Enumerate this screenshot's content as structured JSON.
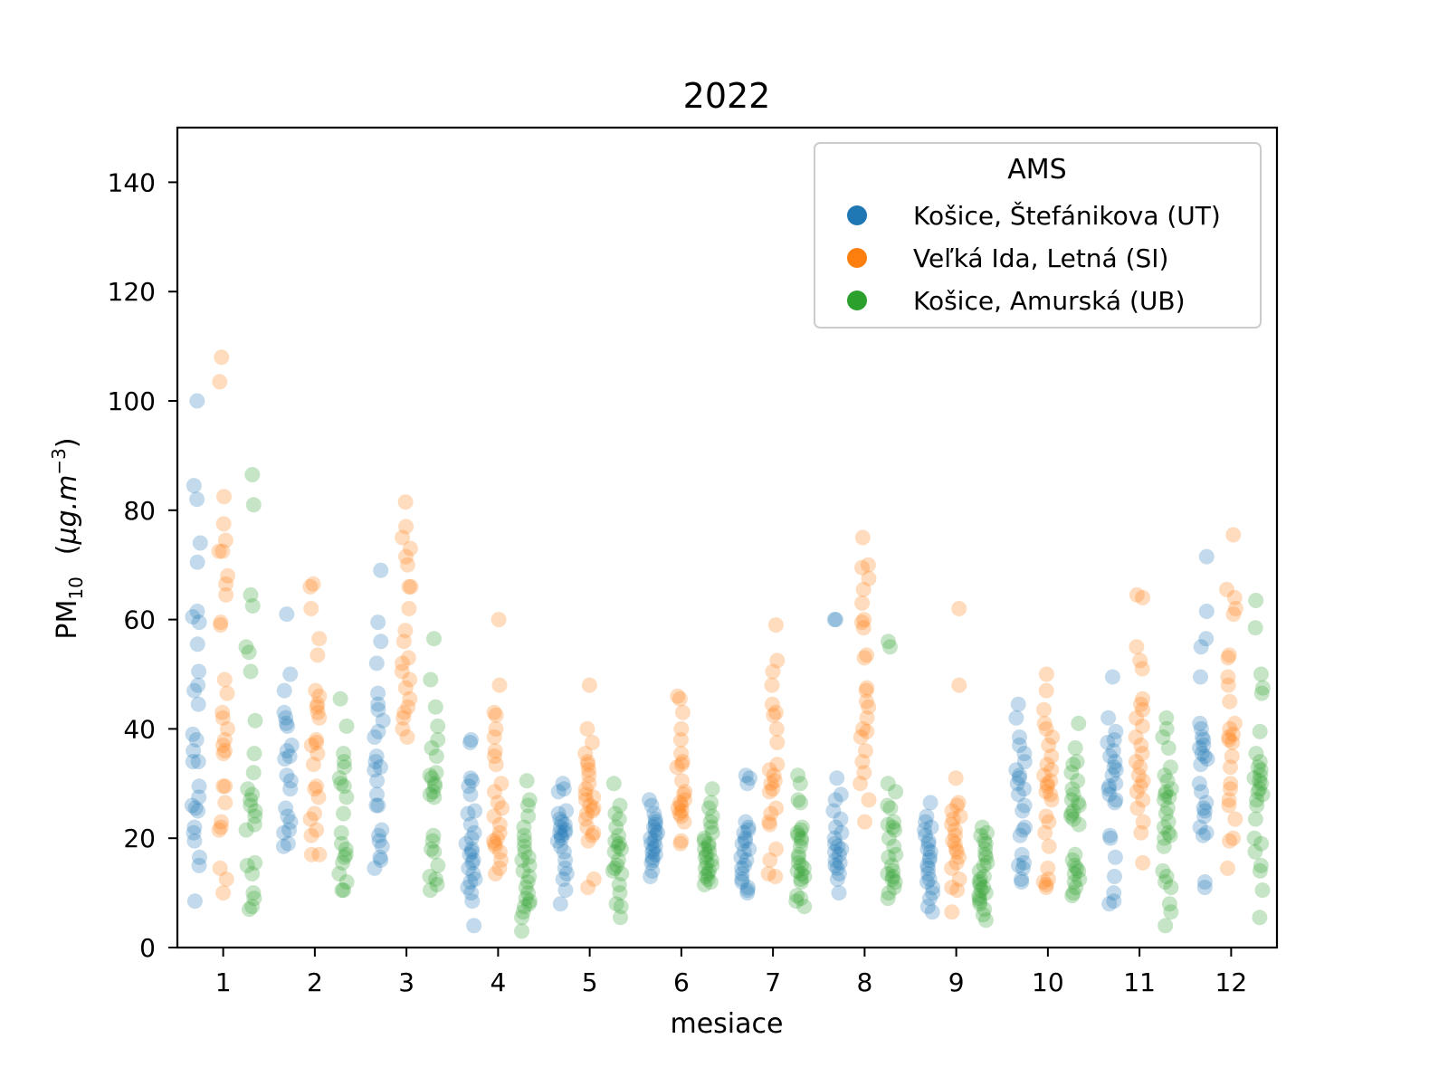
{
  "chart_data": {
    "type": "scatter",
    "title": "2022",
    "xlabel": "mesiace",
    "ylabel": "PM10 (µg.m−3)",
    "ylabel_parts": {
      "pm": "PM",
      "sub": "10",
      "unit_open": "(",
      "unit_mu": "µg.m",
      "unit_exp": "−3",
      "unit_close": ")"
    },
    "xlim": [
      0.5,
      12.5
    ],
    "ylim": [
      0,
      150
    ],
    "xticks": [
      1,
      2,
      3,
      4,
      5,
      6,
      7,
      8,
      9,
      10,
      11,
      12
    ],
    "yticks": [
      0,
      20,
      40,
      60,
      80,
      100,
      120,
      140
    ],
    "grid": false,
    "legend": {
      "title": "AMS",
      "placement": "top-right"
    },
    "series": [
      {
        "name": "Košice, Štefánikova (UT)",
        "color": "#1f77b4",
        "offset": -0.3,
        "values": {
          "1": [
            100,
            84.5,
            82,
            74,
            70.5,
            61.5,
            60.5,
            59.5,
            55.5,
            50.5,
            48,
            47,
            44.5,
            39,
            38,
            36,
            34,
            34,
            29.5,
            27.5,
            26,
            25.5,
            25,
            22,
            21,
            19.5,
            16.5,
            15,
            8.5
          ],
          "2": [
            61,
            50,
            47,
            43,
            42,
            41,
            40.5,
            37,
            36,
            35,
            34.5,
            31.5,
            30.5,
            29,
            25.5,
            24,
            23,
            21.5,
            21,
            19,
            18.5
          ],
          "3": [
            69,
            59.5,
            56,
            52,
            46.5,
            44.5,
            43.5,
            41.5,
            39.5,
            38.5,
            35,
            34,
            33,
            32.5,
            30.5,
            28,
            26,
            26,
            21.5,
            20.5,
            19.5,
            18.5,
            16.5,
            16,
            14.5
          ],
          "4": [
            38,
            37.5,
            31,
            30.5,
            29.5,
            28,
            25,
            24.5,
            22.5,
            21,
            20,
            19,
            18,
            17.5,
            17,
            16,
            15.5,
            14.5,
            13.5,
            12.5,
            12,
            11,
            10,
            8.5,
            4
          ],
          "5": [
            30,
            29,
            28.5,
            25,
            24.5,
            23.5,
            23,
            22.5,
            22,
            21.5,
            21,
            21,
            20.5,
            20,
            19.5,
            18.5,
            17.5,
            16,
            14.5,
            13.5,
            12.5,
            10.5,
            8
          ],
          "6": [
            27,
            26,
            24.5,
            23.5,
            23,
            22.5,
            22,
            21.5,
            21,
            20.5,
            20,
            19.5,
            19,
            18.5,
            18,
            17.5,
            17,
            16.5,
            16,
            15.5,
            14,
            13
          ],
          "7": [
            31.5,
            31,
            30,
            23,
            22,
            21.5,
            21,
            20,
            19.5,
            19,
            18,
            17.5,
            16.5,
            16,
            15,
            14.5,
            13.5,
            12.5,
            12,
            11,
            10.5,
            10
          ],
          "8": [
            60,
            60,
            31,
            28,
            27,
            25,
            23.5,
            22,
            21,
            20,
            19,
            18.5,
            18,
            17.5,
            17,
            16,
            15.5,
            15,
            14.5,
            13.5,
            12.5,
            10
          ],
          "9": [
            26.5,
            24,
            23,
            22,
            21.5,
            20.5,
            19.5,
            19,
            18,
            17.5,
            16.5,
            16,
            15,
            14.5,
            13.5,
            12.5,
            12,
            11,
            10,
            9,
            7.5,
            6.5
          ],
          "10": [
            44.5,
            42,
            38.5,
            37,
            35.5,
            34,
            32.5,
            31.5,
            31,
            30,
            29,
            28,
            26,
            25,
            22,
            21.5,
            20.5,
            17,
            15.5,
            15,
            14.5,
            12.5,
            12
          ],
          "11": [
            49.5,
            42,
            39.5,
            38,
            37.5,
            36,
            35,
            34,
            33,
            32.5,
            31.5,
            30,
            29.5,
            29,
            28,
            27,
            26.5,
            20.5,
            20,
            16.5,
            13,
            10,
            8.5,
            8
          ],
          "12": [
            71.5,
            61.5,
            56.5,
            55,
            49.5,
            41,
            40,
            38.5,
            38,
            37,
            36.5,
            35.5,
            35,
            34.5,
            33.5,
            30,
            28.5,
            26.5,
            25.5,
            25,
            24,
            22,
            21,
            20.5,
            12,
            11
          ]
        }
      },
      {
        "name": "Veľká Ida, Letná (SI)",
        "color": "#ff7f0e",
        "offset": 0,
        "values": {
          "1": [
            108,
            103.5,
            82.5,
            77.5,
            74.5,
            72.5,
            72.5,
            68,
            66.5,
            64.5,
            59.5,
            59,
            49,
            46.5,
            43,
            42,
            40,
            38,
            37,
            36,
            35.5,
            29.5,
            29.5,
            26.5,
            23,
            22,
            21.5,
            14.5,
            12.5,
            10
          ],
          "2": [
            66.5,
            66,
            62,
            56.5,
            53.5,
            47,
            46,
            44.5,
            44,
            43,
            42,
            38,
            37.5,
            37,
            35.5,
            33.5,
            29.5,
            29,
            27.5,
            24.5,
            23.5,
            21.5,
            20.5,
            17,
            17
          ],
          "3": [
            81.5,
            77,
            75,
            73,
            71.5,
            70,
            66,
            66,
            62,
            58,
            56,
            53,
            52,
            50.5,
            49,
            47.5,
            45.5,
            44,
            43,
            42,
            40,
            38.5
          ],
          "4": [
            60,
            48,
            43,
            42.5,
            40,
            38.5,
            36,
            35,
            33.5,
            30,
            28.5,
            26.5,
            25.5,
            24,
            22.5,
            21,
            20,
            19.5,
            19,
            18.5,
            17.5,
            16,
            14.5,
            13.5
          ],
          "5": [
            48,
            40,
            37.5,
            35.5,
            34,
            33.5,
            32.5,
            31.5,
            30,
            29,
            28,
            27.5,
            27,
            26,
            25.5,
            25,
            24.5,
            23.5,
            22,
            21,
            20.5,
            19.5,
            12.5,
            11
          ],
          "6": [
            46,
            45.5,
            43,
            40,
            38,
            35.5,
            34,
            33.5,
            33,
            30.5,
            28.5,
            28,
            27,
            26.5,
            26,
            25.5,
            25,
            24.5,
            24,
            23,
            19.5,
            19
          ],
          "7": [
            59,
            52.5,
            50.5,
            48,
            44.5,
            43,
            42.5,
            40,
            37.5,
            33.5,
            32.5,
            31.5,
            30.5,
            30,
            29,
            28.5,
            25.5,
            24.5,
            23,
            22.5,
            18,
            16,
            13.5,
            13
          ],
          "8": [
            75,
            70,
            69.5,
            67.5,
            65.5,
            63,
            60,
            59.5,
            58.5,
            53.5,
            53,
            47.5,
            47,
            45,
            44,
            42,
            40,
            39.5,
            38.5,
            36,
            34,
            32,
            30,
            27,
            23
          ],
          "9": [
            62,
            48,
            31,
            26.5,
            26,
            25,
            24,
            23.5,
            22.5,
            21.5,
            20.5,
            19.5,
            19,
            18,
            17.5,
            16.5,
            15.5,
            14.5,
            12.5,
            11,
            10.5,
            6.5
          ],
          "10": [
            50,
            47,
            43.5,
            41,
            40,
            38.5,
            37,
            35,
            33.5,
            32.5,
            31.5,
            30.5,
            30,
            29.5,
            28.5,
            28,
            27,
            24,
            23,
            21,
            18.5,
            14.5,
            12.5,
            12,
            11.5,
            11
          ],
          "11": [
            64,
            64.5,
            55,
            52.5,
            51,
            45.5,
            44.5,
            43.5,
            42,
            40.5,
            38.5,
            37,
            35.5,
            34,
            33,
            31.5,
            30.5,
            29.5,
            28.5,
            27,
            25.5,
            23,
            21,
            15.5
          ],
          "12": [
            75.5,
            65.5,
            64,
            62,
            61,
            53.5,
            53,
            49.5,
            48,
            45,
            41,
            40,
            39,
            38.5,
            38,
            37.5,
            35,
            33,
            30,
            29,
            27,
            26,
            23.5,
            20,
            19.5,
            14.5
          ]
        }
      },
      {
        "name": "Košice, Amurská (UB)",
        "color": "#2ca02c",
        "offset": 0.3,
        "values": {
          "1": [
            86.5,
            81,
            64.5,
            62.5,
            55,
            54,
            50.5,
            41.5,
            35.5,
            32,
            29,
            28,
            27,
            26,
            25,
            24,
            22.5,
            21.5,
            15.5,
            15,
            13.5,
            10,
            9,
            7.5,
            7
          ],
          "2": [
            45.5,
            40.5,
            35.5,
            34,
            33,
            31,
            30,
            29.5,
            27.5,
            24.5,
            21,
            19,
            18,
            17,
            16.5,
            15.5,
            13.5,
            12,
            10.5,
            10.5
          ],
          "3": [
            56.5,
            49,
            44,
            40.5,
            38,
            36.5,
            35,
            32,
            31.5,
            31,
            30,
            29.5,
            28.5,
            28,
            27.5,
            20.5,
            19.5,
            18,
            17.5,
            15,
            13,
            12.5,
            11.5,
            10.5
          ],
          "4": [
            30.5,
            27,
            26,
            24,
            22,
            20.5,
            19.5,
            18.5,
            17.5,
            16.5,
            16,
            15,
            14,
            13,
            12,
            11,
            10,
            9,
            8.5,
            8,
            7.5,
            6.5,
            5.5,
            3
          ],
          "5": [
            30,
            26,
            24.5,
            23.5,
            22,
            20.5,
            19.5,
            19,
            18.5,
            18,
            17.5,
            16,
            15,
            14.5,
            14,
            13.5,
            11.5,
            10,
            8,
            7.5,
            5.5
          ],
          "6": [
            29,
            26.5,
            25.5,
            24,
            23,
            22,
            21,
            20,
            19.5,
            19,
            18.5,
            18,
            17.5,
            17,
            16.5,
            16,
            15.5,
            15,
            14.5,
            14,
            13.5,
            13,
            12.5,
            12,
            11.5
          ],
          "7": [
            31.5,
            30,
            27,
            26.5,
            22,
            21.5,
            21,
            20.5,
            20,
            19.5,
            18.5,
            17,
            16.5,
            15.5,
            15,
            14.5,
            14,
            13.5,
            13,
            12.5,
            12,
            9.5,
            9,
            8.5,
            7.5
          ],
          "8": [
            56,
            55,
            30,
            28.5,
            26,
            25.5,
            23,
            22.5,
            22,
            21.5,
            20,
            18.5,
            17,
            16.5,
            15,
            14,
            13.5,
            13,
            12.5,
            12,
            11,
            10,
            9
          ],
          "9": [
            22,
            21,
            20.5,
            19.5,
            19,
            18,
            17,
            16.5,
            15.5,
            15,
            14,
            13,
            12.5,
            12,
            11.5,
            11,
            10.5,
            10,
            9.5,
            9,
            8.5,
            8,
            7,
            6,
            5
          ],
          "10": [
            41,
            36.5,
            34,
            33.5,
            32,
            30.5,
            29,
            28,
            27,
            26.5,
            26,
            25,
            24.5,
            24,
            23.5,
            22.5,
            17,
            16,
            15,
            14.5,
            14,
            13.5,
            12.5,
            12,
            11,
            10,
            9.5
          ],
          "11": [
            42,
            40,
            38.5,
            36.5,
            33,
            31.5,
            30.5,
            29,
            28.5,
            28,
            27.5,
            27,
            25.5,
            24.5,
            23,
            22,
            21,
            20.5,
            20,
            18.5,
            14,
            13,
            12,
            11,
            8,
            6.5,
            4
          ],
          "12": [
            63.5,
            58.5,
            50,
            47.5,
            46.5,
            39.5,
            35.5,
            34,
            33,
            32.5,
            31.5,
            31,
            30.5,
            30,
            29,
            28.5,
            28,
            27,
            26,
            23.5,
            20,
            19,
            17.5,
            15,
            14,
            10.5,
            5.5
          ]
        }
      }
    ]
  }
}
